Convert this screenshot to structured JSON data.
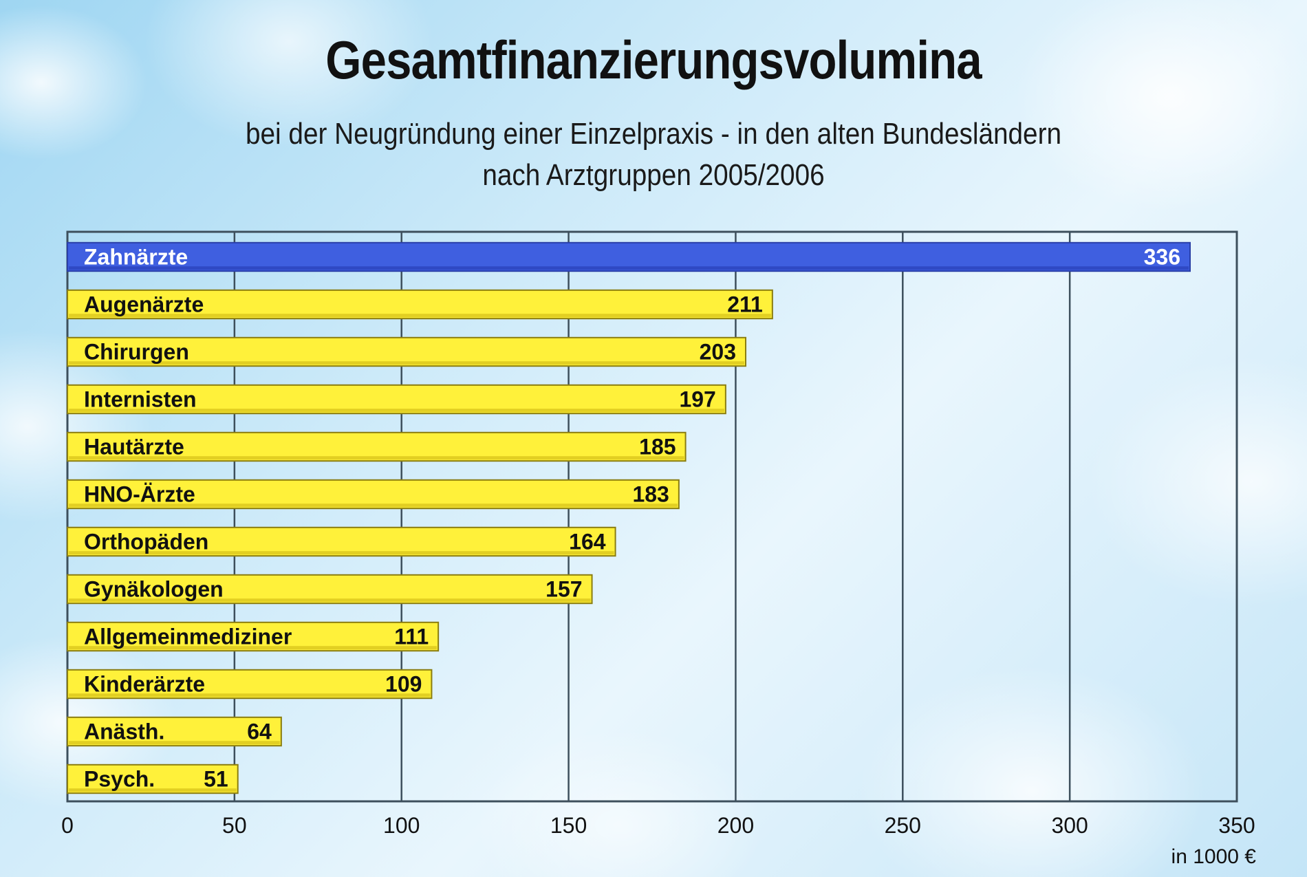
{
  "title": "Gesamtfinanzierungsvolumina",
  "subtitle_line1": "bei der Neugründung einer Einzelpraxis - in den alten Bundesländern",
  "subtitle_line2": "nach Arztgruppen 2005/2006",
  "colors": {
    "highlight_bar": "#3f5fe0",
    "bar": "#fff13a",
    "bar_border": "#8a7d10",
    "grid": "#3d4f5c"
  },
  "chart_data": {
    "type": "bar",
    "orientation": "horizontal",
    "title": "Gesamtfinanzierungsvolumina",
    "subtitle": "bei der Neugründung einer Einzelpraxis - in den alten Bundesländern nach Arztgruppen 2005/2006",
    "xlabel": "in 1000 €",
    "ylabel": "",
    "xlim": [
      0,
      350
    ],
    "xticks": [
      0,
      50,
      100,
      150,
      200,
      250,
      300,
      350
    ],
    "grid": true,
    "categories": [
      "Zahnärzte",
      "Augenärzte",
      "Chirurgen",
      "Internisten",
      "Hautärzte",
      "HNO-Ärzte",
      "Orthopäden",
      "Gynäkologen",
      "Allgemeinmediziner",
      "Kinderärzte",
      "Anästh.",
      "Psych."
    ],
    "values": [
      336,
      211,
      203,
      197,
      185,
      183,
      164,
      157,
      111,
      109,
      64,
      51
    ],
    "data_labels": [
      "336",
      "211",
      "203",
      "197",
      "185",
      "183",
      "164",
      "157",
      "111",
      "109",
      "64",
      "51"
    ]
  }
}
